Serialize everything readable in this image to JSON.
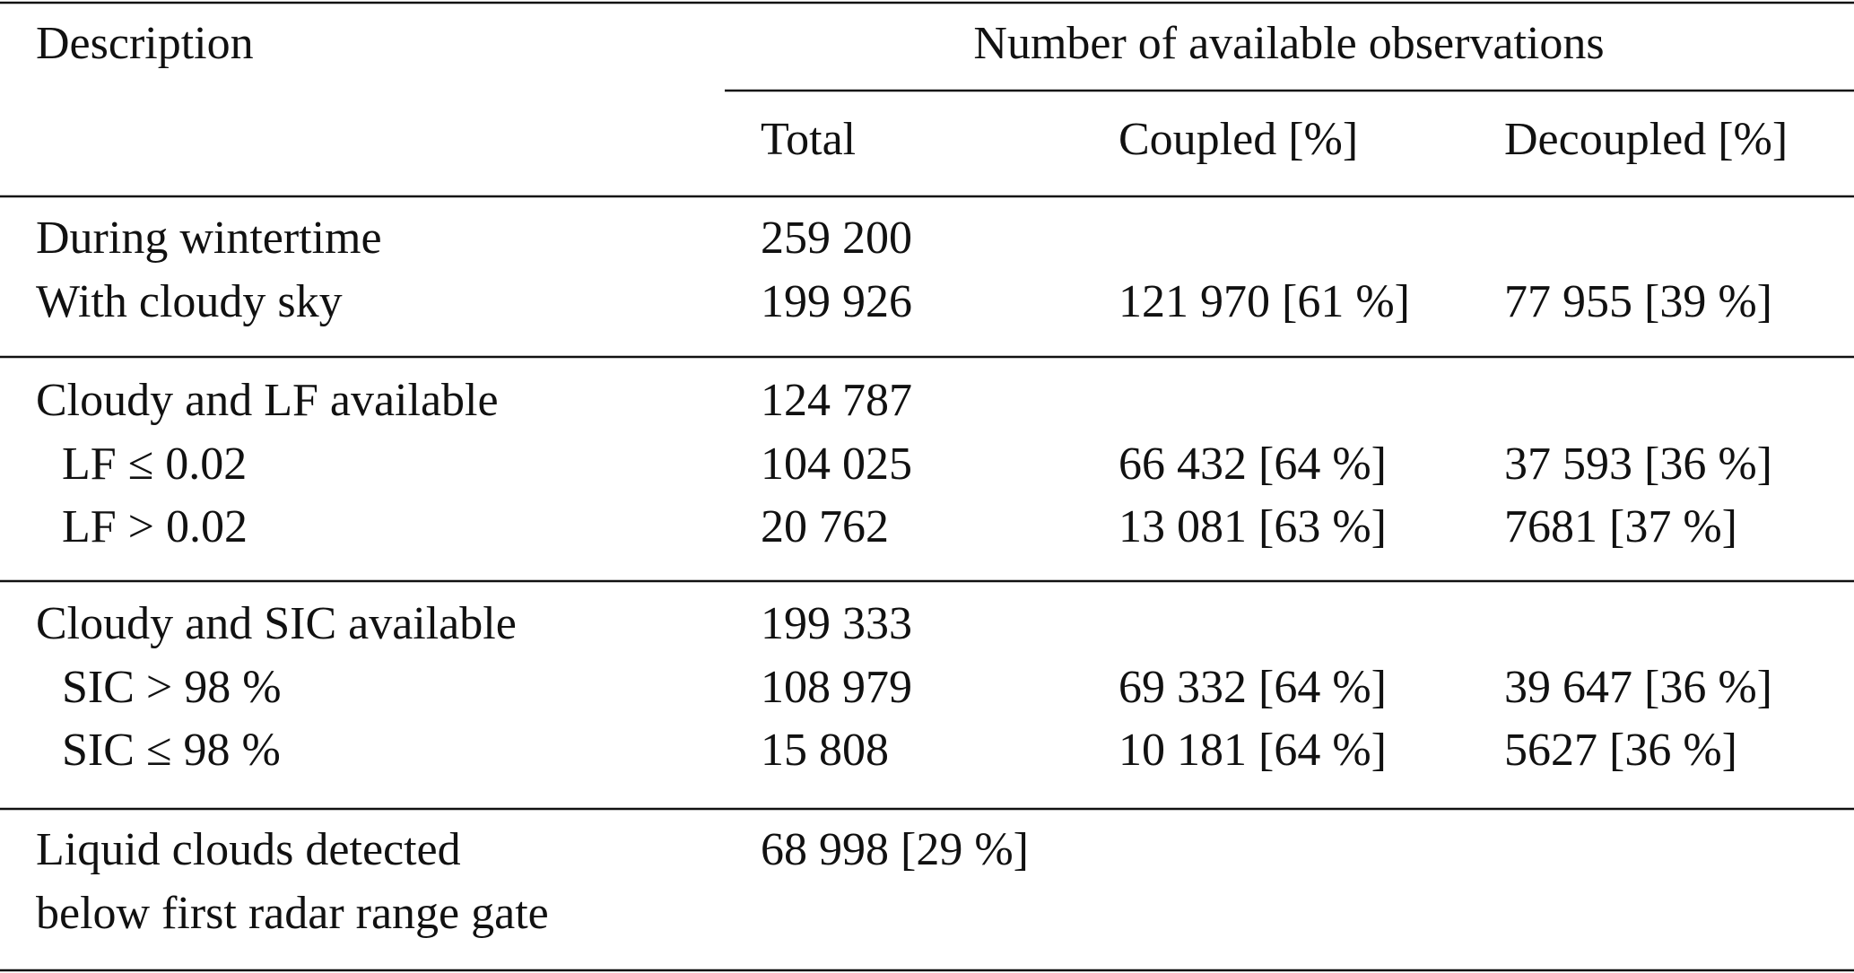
{
  "header": {
    "description": "Description",
    "group_title": "Number of available observations",
    "columns": [
      "Total",
      "Coupled [%]",
      "Decoupled [%]"
    ]
  },
  "groups": [
    {
      "rows": [
        {
          "label": "During wintertime",
          "total": "259 200"
        },
        {
          "label": "With cloudy sky",
          "total": "199 926",
          "coupled": "121 970 [61 %]",
          "decoupled": "77 955 [39 %]"
        }
      ]
    },
    {
      "rows": [
        {
          "label": "Cloudy and LF available",
          "total": "124 787"
        },
        {
          "label": "LF ≤ 0.02",
          "total": "104 025",
          "coupled": "66 432 [64 %]",
          "decoupled": "37 593 [36 %]"
        },
        {
          "label": "LF > 0.02",
          "total": "20 762",
          "coupled": "13 081 [63 %]",
          "decoupled": "7681 [37 %]"
        }
      ]
    },
    {
      "rows": [
        {
          "label": "Cloudy and SIC available",
          "total": "199 333"
        },
        {
          "label": "SIC > 98 %",
          "total": "108 979",
          "coupled": "69 332 [64 %]",
          "decoupled": "39 647 [36 %]"
        },
        {
          "label": "SIC ≤ 98 %",
          "total": "15 808",
          "coupled": "10 181 [64 %]",
          "decoupled": "5627 [36 %]"
        }
      ]
    },
    {
      "rows": [
        {
          "label": [
            "Liquid clouds detected",
            "below first radar range gate"
          ],
          "total": "68 998 [29 %]"
        }
      ]
    }
  ]
}
